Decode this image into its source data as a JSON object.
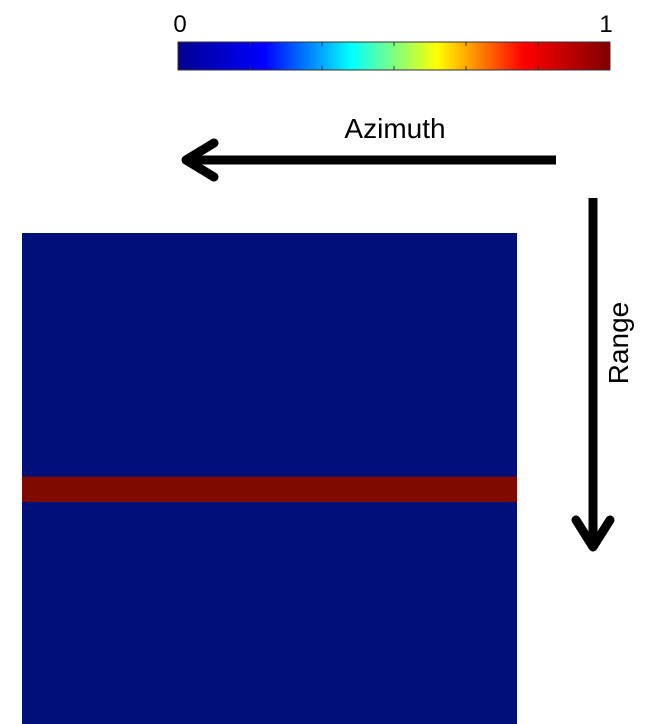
{
  "chart_data": {
    "type": "heatmap",
    "colorbar": {
      "min_label": "0",
      "max_label": "1",
      "range": [
        0,
        1
      ],
      "colormap": "jet",
      "colors": [
        "#00008f",
        "#0000ff",
        "#00ffff",
        "#ffff00",
        "#ff0000",
        "#800000"
      ]
    },
    "x_direction_label": "Azimuth",
    "y_direction_label": "Range",
    "background_value": 0,
    "background_color": "#00107a",
    "band": {
      "value": 1,
      "color": "#7f0a00",
      "orientation": "horizontal",
      "y_start_fraction": 0.496,
      "y_end_fraction": 0.548
    }
  }
}
